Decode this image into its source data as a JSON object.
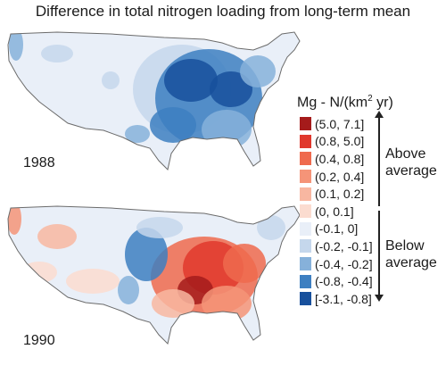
{
  "title": "Difference in total nitrogen loading from long-term mean",
  "maps": [
    {
      "year": "1988",
      "pattern": "below-average-east"
    },
    {
      "year": "1990",
      "pattern": "above-average-east"
    }
  ],
  "legend": {
    "title_prefix": "Mg - N/(km",
    "title_sup": "2",
    "title_suffix": " yr)",
    "items": [
      {
        "label": "(5.0, 7.1]",
        "color": "#a51b1b"
      },
      {
        "label": "(0.8, 5.0]",
        "color": "#e0382d"
      },
      {
        "label": "(0.4, 0.8]",
        "color": "#ef6a4e"
      },
      {
        "label": "(0.2, 0.4]",
        "color": "#f59478"
      },
      {
        "label": "(0.1, 0.2]",
        "color": "#f8b7a1"
      },
      {
        "label": "(0, 0.1]",
        "color": "#fbdcd0"
      },
      {
        "label": "(-0.1, 0]",
        "color": "#e9eff8"
      },
      {
        "label": "(-0.2, -0.1]",
        "color": "#c5d7ec"
      },
      {
        "label": "(-0.4, -0.2]",
        "color": "#86b1da"
      },
      {
        "label": "(-0.8, -0.4]",
        "color": "#3d7fc1"
      },
      {
        "label": "[-3.1, -0.8]",
        "color": "#18509c"
      }
    ],
    "above_label_1": "Above",
    "above_label_2": "average",
    "below_label_1": "Below",
    "below_label_2": "average"
  }
}
